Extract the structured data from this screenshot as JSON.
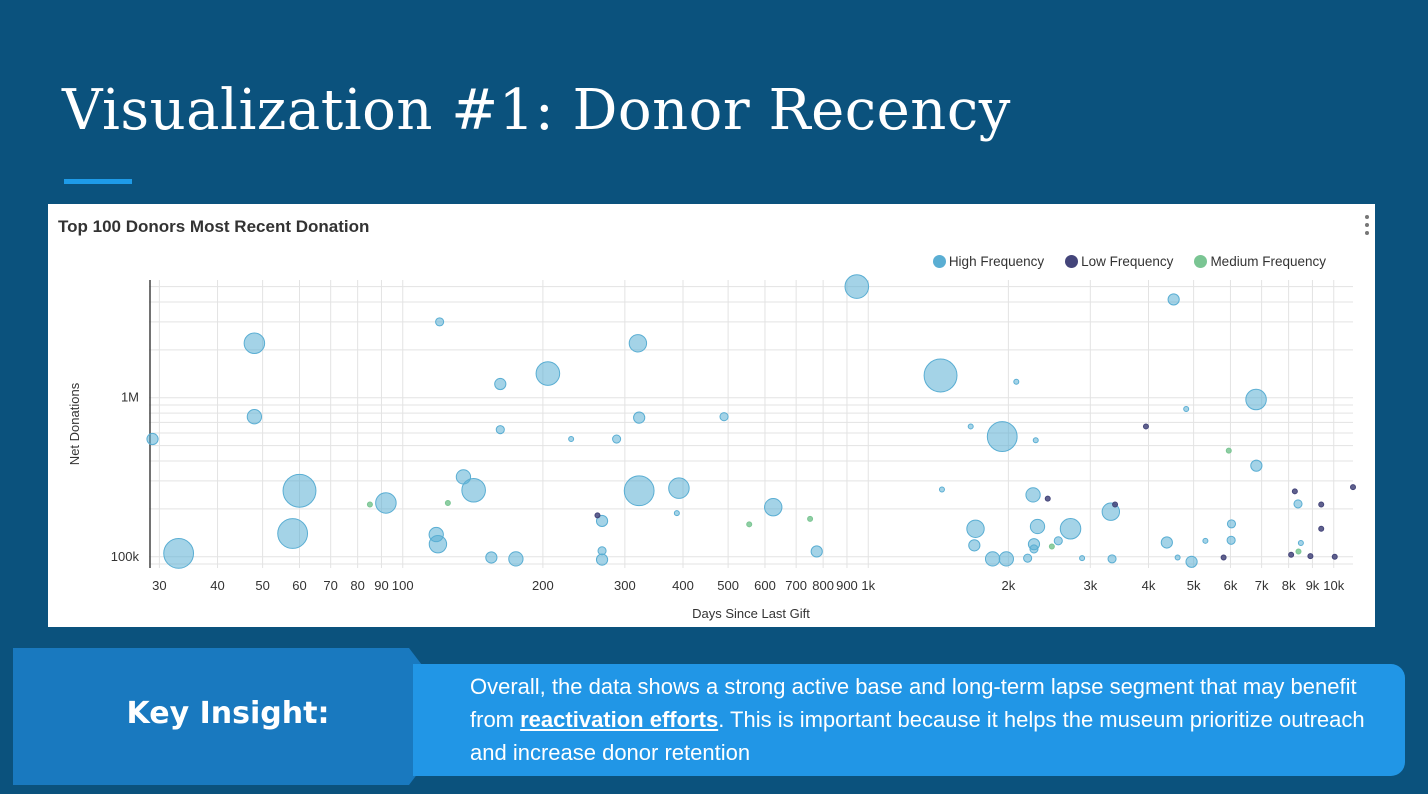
{
  "slide": {
    "title": "Visualization #1: Donor Recency"
  },
  "chart_data": {
    "type": "scatter",
    "title": "Top 100 Donors Most Recent Donation",
    "xlabel": "Days Since Last Gift",
    "ylabel": "Net Donations",
    "x_scale": "log",
    "y_scale": "log",
    "xlim": [
      28.5,
      11000
    ],
    "ylim": [
      85000,
      5500000
    ],
    "x_ticks": [
      30,
      40,
      50,
      60,
      70,
      80,
      90,
      100,
      200,
      300,
      400,
      500,
      600,
      700,
      800,
      900,
      1000,
      2000,
      3000,
      4000,
      5000,
      6000,
      7000,
      8000,
      9000,
      10000
    ],
    "x_tick_labels": [
      "30",
      "40",
      "50",
      "60",
      "70",
      "80",
      "90",
      "100",
      "200",
      "300",
      "400",
      "500",
      "600",
      "700",
      "800",
      "900",
      "1k",
      "2k",
      "3k",
      "4k",
      "5k",
      "6k",
      "7k",
      "8k",
      "9k",
      "10k"
    ],
    "y_ticks": [
      100000,
      1000000
    ],
    "y_tick_labels": [
      "100k",
      "1M"
    ],
    "grid": true,
    "legend_position": "top-right",
    "series": [
      {
        "name": "High Frequency",
        "color": "#5aaed3",
        "points": [
          {
            "x": 29,
            "y": 550000,
            "size": 3
          },
          {
            "x": 33,
            "y": 105000,
            "size": 9
          },
          {
            "x": 48,
            "y": 2200000,
            "size": 6
          },
          {
            "x": 48,
            "y": 760000,
            "size": 4
          },
          {
            "x": 58,
            "y": 140000,
            "size": 9
          },
          {
            "x": 60,
            "y": 260000,
            "size": 10
          },
          {
            "x": 92,
            "y": 218000,
            "size": 6
          },
          {
            "x": 120,
            "y": 3000000,
            "size": 2
          },
          {
            "x": 118,
            "y": 138000,
            "size": 4
          },
          {
            "x": 119,
            "y": 120000,
            "size": 5
          },
          {
            "x": 135,
            "y": 318000,
            "size": 4
          },
          {
            "x": 142,
            "y": 262000,
            "size": 7
          },
          {
            "x": 155,
            "y": 99000,
            "size": 3
          },
          {
            "x": 162,
            "y": 1220000,
            "size": 3
          },
          {
            "x": 162,
            "y": 630000,
            "size": 2
          },
          {
            "x": 175,
            "y": 97000,
            "size": 4
          },
          {
            "x": 205,
            "y": 1420000,
            "size": 7
          },
          {
            "x": 230,
            "y": 550000,
            "size": 1
          },
          {
            "x": 268,
            "y": 168000,
            "size": 3
          },
          {
            "x": 268,
            "y": 109000,
            "size": 2
          },
          {
            "x": 268,
            "y": 96000,
            "size": 3
          },
          {
            "x": 288,
            "y": 550000,
            "size": 2
          },
          {
            "x": 320,
            "y": 2200000,
            "size": 5
          },
          {
            "x": 322,
            "y": 260000,
            "size": 9
          },
          {
            "x": 322,
            "y": 750000,
            "size": 3
          },
          {
            "x": 388,
            "y": 188000,
            "size": 1
          },
          {
            "x": 392,
            "y": 270000,
            "size": 6
          },
          {
            "x": 490,
            "y": 760000,
            "size": 2
          },
          {
            "x": 625,
            "y": 205000,
            "size": 5
          },
          {
            "x": 775,
            "y": 108000,
            "size": 3
          },
          {
            "x": 945,
            "y": 5000000,
            "size": 7
          },
          {
            "x": 1430,
            "y": 1380000,
            "size": 10
          },
          {
            "x": 1440,
            "y": 265000,
            "size": 1
          },
          {
            "x": 1660,
            "y": 660000,
            "size": 1
          },
          {
            "x": 1700,
            "y": 150000,
            "size": 5
          },
          {
            "x": 1690,
            "y": 118000,
            "size": 3
          },
          {
            "x": 1850,
            "y": 97000,
            "size": 4
          },
          {
            "x": 1980,
            "y": 97000,
            "size": 4
          },
          {
            "x": 1940,
            "y": 570000,
            "size": 9
          },
          {
            "x": 2080,
            "y": 1260000,
            "size": 1
          },
          {
            "x": 2260,
            "y": 245000,
            "size": 4
          },
          {
            "x": 2290,
            "y": 540000,
            "size": 1
          },
          {
            "x": 2310,
            "y": 155000,
            "size": 4
          },
          {
            "x": 2270,
            "y": 120000,
            "size": 3
          },
          {
            "x": 2270,
            "y": 112000,
            "size": 2
          },
          {
            "x": 2200,
            "y": 98000,
            "size": 2
          },
          {
            "x": 2560,
            "y": 126000,
            "size": 2
          },
          {
            "x": 2720,
            "y": 150000,
            "size": 6
          },
          {
            "x": 2880,
            "y": 98000,
            "size": 1
          },
          {
            "x": 3320,
            "y": 192000,
            "size": 5
          },
          {
            "x": 3340,
            "y": 97000,
            "size": 2
          },
          {
            "x": 4380,
            "y": 123000,
            "size": 3
          },
          {
            "x": 4530,
            "y": 4150000,
            "size": 3
          },
          {
            "x": 4620,
            "y": 99000,
            "size": 1
          },
          {
            "x": 4820,
            "y": 850000,
            "size": 1
          },
          {
            "x": 4950,
            "y": 93000,
            "size": 3
          },
          {
            "x": 5300,
            "y": 126000,
            "size": 1
          },
          {
            "x": 6030,
            "y": 161000,
            "size": 2
          },
          {
            "x": 6020,
            "y": 127000,
            "size": 2
          },
          {
            "x": 6810,
            "y": 975000,
            "size": 6
          },
          {
            "x": 6820,
            "y": 374000,
            "size": 3
          },
          {
            "x": 8380,
            "y": 215000,
            "size": 2
          },
          {
            "x": 8500,
            "y": 122000,
            "size": 1
          }
        ]
      },
      {
        "name": "Low Frequency",
        "color": "#44457a",
        "points": [
          {
            "x": 262,
            "y": 182000,
            "size": 1
          },
          {
            "x": 2430,
            "y": 232000,
            "size": 1
          },
          {
            "x": 3390,
            "y": 213000,
            "size": 1
          },
          {
            "x": 3950,
            "y": 660000,
            "size": 1
          },
          {
            "x": 5800,
            "y": 99000,
            "size": 1
          },
          {
            "x": 8100,
            "y": 103000,
            "size": 1
          },
          {
            "x": 8250,
            "y": 258000,
            "size": 1
          },
          {
            "x": 8910,
            "y": 101000,
            "size": 1
          },
          {
            "x": 9400,
            "y": 150000,
            "size": 1
          },
          {
            "x": 9400,
            "y": 213000,
            "size": 1
          },
          {
            "x": 10050,
            "y": 100000,
            "size": 1
          },
          {
            "x": 11000,
            "y": 274000,
            "size": 1
          }
        ]
      },
      {
        "name": "Medium Frequency",
        "color": "#7ac593",
        "points": [
          {
            "x": 85,
            "y": 213000,
            "size": 1
          },
          {
            "x": 125,
            "y": 218000,
            "size": 1
          },
          {
            "x": 555,
            "y": 160000,
            "size": 1
          },
          {
            "x": 750,
            "y": 173000,
            "size": 1
          },
          {
            "x": 2480,
            "y": 116000,
            "size": 1
          },
          {
            "x": 5950,
            "y": 465000,
            "size": 1
          },
          {
            "x": 8400,
            "y": 108000,
            "size": 1
          }
        ]
      }
    ]
  },
  "insight": {
    "label": "Key Insight:",
    "text_before": "Overall, the data shows a strong active base and long-term lapse segment that may benefit from ",
    "link_text": "reactivation efforts",
    "text_after": ". This is important because it helps the museum prioritize outreach and increase donor retention"
  }
}
